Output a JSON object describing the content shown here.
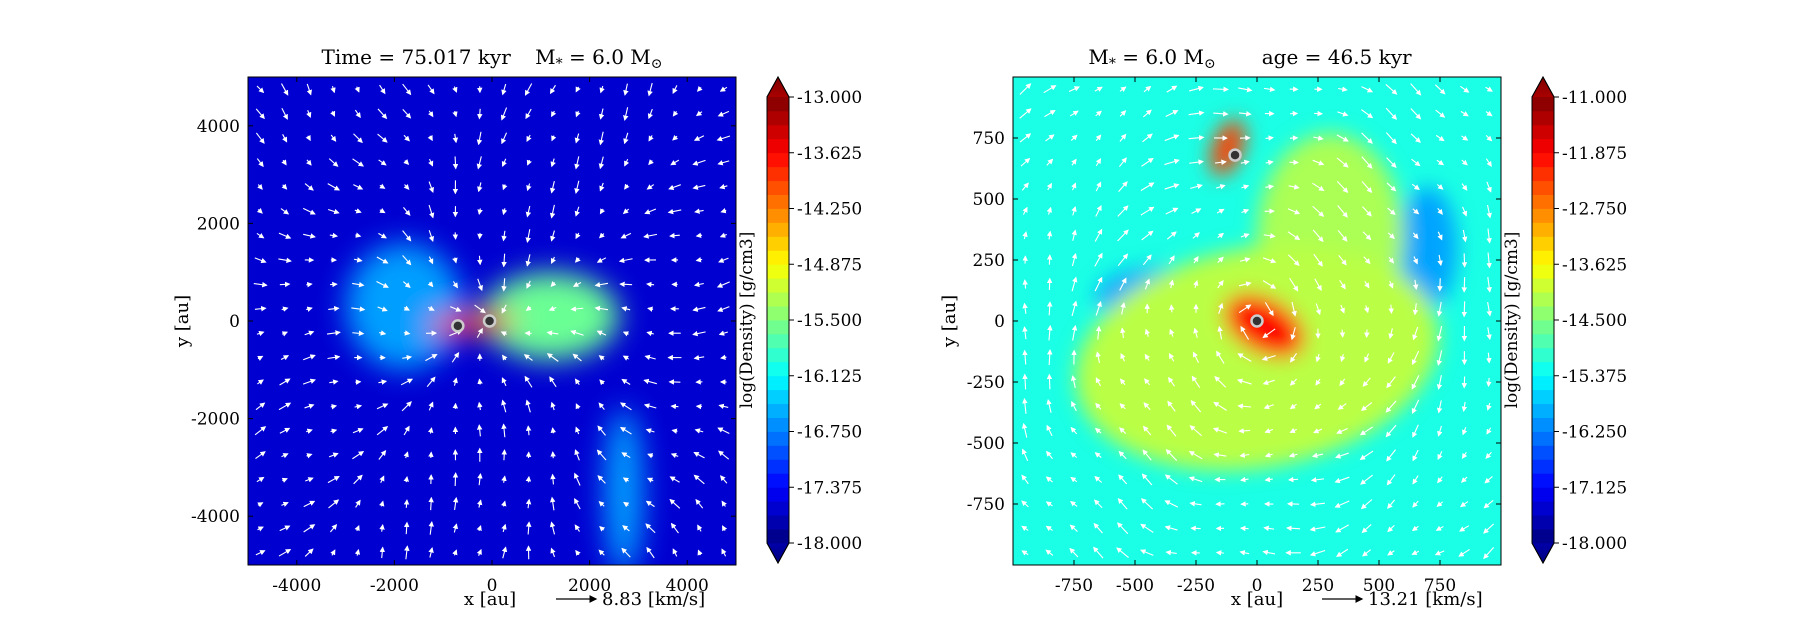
{
  "chart_data": [
    {
      "type": "heatmap",
      "title": "Time = 75.017 kyr    M$_*$ = 6.0 M$_\\odot$",
      "title_parts": {
        "left": "Time = 75.017 kyr",
        "mass": "M",
        "mass_sub": "*",
        "mass_eq": " = 6.0 M",
        "mass_unit_sub": "⊙"
      },
      "xlabel": "x [au]",
      "ylabel": "y [au]",
      "xlim": [
        -5000,
        5000
      ],
      "ylim": [
        -5000,
        5000
      ],
      "xticks": [
        -4000,
        -2000,
        0,
        2000,
        4000
      ],
      "yticks": [
        -4000,
        -2000,
        0,
        2000,
        4000
      ],
      "colorbar": {
        "label": "log(Density) [g/cm3]",
        "min": -18.0,
        "max": -13.0,
        "ticks": [
          "-13.000",
          "-13.625",
          "-14.250",
          "-14.875",
          "-15.500",
          "-16.125",
          "-16.750",
          "-17.375",
          "-18.000"
        ],
        "extend": "both"
      },
      "velocity_key": {
        "value": "8.83",
        "unit": "[km/s]"
      },
      "sinks": [
        {
          "x": -700,
          "y": -100
        },
        {
          "x": -50,
          "y": 0
        }
      ],
      "background_log_density": -17.6,
      "structures": [
        {
          "x": -400,
          "y": -50,
          "rx": 900,
          "ry": 220,
          "angle": 5,
          "value": -13.6
        },
        {
          "x": 1200,
          "y": 100,
          "rx": 1400,
          "ry": 900,
          "angle": 0,
          "value": -15.6
        },
        {
          "x": -1800,
          "y": 300,
          "rx": 1200,
          "ry": 1300,
          "angle": 0,
          "value": -16.6
        },
        {
          "x": 2700,
          "y": -3500,
          "rx": 400,
          "ry": 1700,
          "angle": 0,
          "value": -16.6
        }
      ]
    },
    {
      "type": "heatmap",
      "title": "M$_*$ = 6.0 M$_\\odot$    age = 46.5 kyr",
      "title_parts": {
        "mass": "M",
        "mass_sub": "*",
        "mass_eq": " = 6.0 M",
        "mass_unit_sub": "⊙",
        "right": "age = 46.5 kyr"
      },
      "xlabel": "x [au]",
      "ylabel": "y [au]",
      "xlim": [
        -1000,
        1000
      ],
      "ylim": [
        -1000,
        1000
      ],
      "xticks": [
        -750,
        -500,
        -250,
        0,
        250,
        500,
        750
      ],
      "yticks": [
        -750,
        -500,
        -250,
        0,
        250,
        500,
        750
      ],
      "colorbar": {
        "label": "log(Density) [g/cm3]",
        "min": -18.0,
        "max": -11.0,
        "ticks": [
          "-11.000",
          "-11.875",
          "-12.750",
          "-13.625",
          "-14.500",
          "-15.375",
          "-16.250",
          "-17.125",
          "-18.000"
        ],
        "extend": "both"
      },
      "velocity_key": {
        "value": "13.21",
        "unit": "[km/s]"
      },
      "sinks": [
        {
          "x": 0,
          "y": 0
        },
        {
          "x": -90,
          "y": 680
        }
      ],
      "background_log_density": -15.2,
      "structures": [
        {
          "x": 30,
          "y": -20,
          "rx": 180,
          "ry": 110,
          "angle": -30,
          "value": -11.9
        },
        {
          "x": -120,
          "y": 710,
          "rx": 60,
          "ry": 120,
          "angle": -20,
          "value": -12.3
        },
        {
          "x": 0,
          "y": -150,
          "rx": 750,
          "ry": 450,
          "angle": 10,
          "value": -14.1
        },
        {
          "x": 300,
          "y": 350,
          "rx": 300,
          "ry": 420,
          "angle": 0,
          "value": -14.2
        },
        {
          "x": -400,
          "y": 100,
          "rx": 260,
          "ry": 120,
          "angle": 0,
          "value": -16.0
        },
        {
          "x": 700,
          "y": 300,
          "rx": 120,
          "ry": 250,
          "angle": 0,
          "value": -16.0
        }
      ]
    }
  ]
}
